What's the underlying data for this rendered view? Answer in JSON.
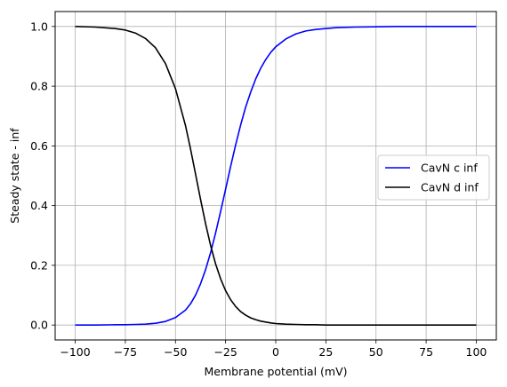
{
  "chart_data": {
    "type": "line",
    "title": "",
    "xlabel": "Membrane potential (mV)",
    "ylabel": "Steady state - inf",
    "xlim": [
      -110,
      110
    ],
    "ylim": [
      -0.05,
      1.05
    ],
    "xticks": [
      -100,
      -75,
      -50,
      -25,
      0,
      25,
      50,
      75,
      100
    ],
    "xtick_labels": [
      "−100",
      "−75",
      "−50",
      "−25",
      "0",
      "25",
      "50",
      "75",
      "100"
    ],
    "yticks": [
      0.0,
      0.2,
      0.4,
      0.6,
      0.8,
      1.0
    ],
    "ytick_labels": [
      "0.0",
      "0.2",
      "0.4",
      "0.6",
      "0.8",
      "1.0"
    ],
    "grid": true,
    "legend_position": "center-right",
    "x": [
      -100,
      -90,
      -80,
      -75,
      -70,
      -65,
      -60,
      -55,
      -50,
      -45,
      -42.5,
      -40,
      -37.5,
      -35,
      -32.5,
      -30,
      -27.5,
      -25,
      -22.5,
      -20,
      -17.5,
      -15,
      -12.5,
      -10,
      -7.5,
      -5,
      -2.5,
      0,
      5,
      10,
      15,
      20,
      25,
      30,
      40,
      50,
      60,
      75,
      100
    ],
    "series": [
      {
        "name": "CavN c inf",
        "color": "#0000ff",
        "values": [
          0.0,
          0.0,
          0.001,
          0.001,
          0.002,
          0.003,
          0.006,
          0.012,
          0.025,
          0.05,
          0.071,
          0.1,
          0.138,
          0.185,
          0.242,
          0.308,
          0.38,
          0.455,
          0.531,
          0.603,
          0.67,
          0.73,
          0.78,
          0.824,
          0.86,
          0.889,
          0.913,
          0.932,
          0.958,
          0.975,
          0.985,
          0.99,
          0.993,
          0.996,
          0.998,
          0.999,
          1.0,
          1.0,
          1.0
        ]
      },
      {
        "name": "CavN d inf",
        "color": "#000000",
        "values": [
          1.0,
          0.998,
          0.993,
          0.988,
          0.978,
          0.96,
          0.929,
          0.876,
          0.792,
          0.668,
          0.59,
          0.506,
          0.421,
          0.34,
          0.267,
          0.205,
          0.155,
          0.115,
          0.085,
          0.062,
          0.045,
          0.033,
          0.024,
          0.018,
          0.013,
          0.01,
          0.007,
          0.005,
          0.003,
          0.002,
          0.001,
          0.001,
          0.0,
          0.0,
          0.0,
          0.0,
          0.0,
          0.0,
          0.0
        ]
      }
    ]
  }
}
